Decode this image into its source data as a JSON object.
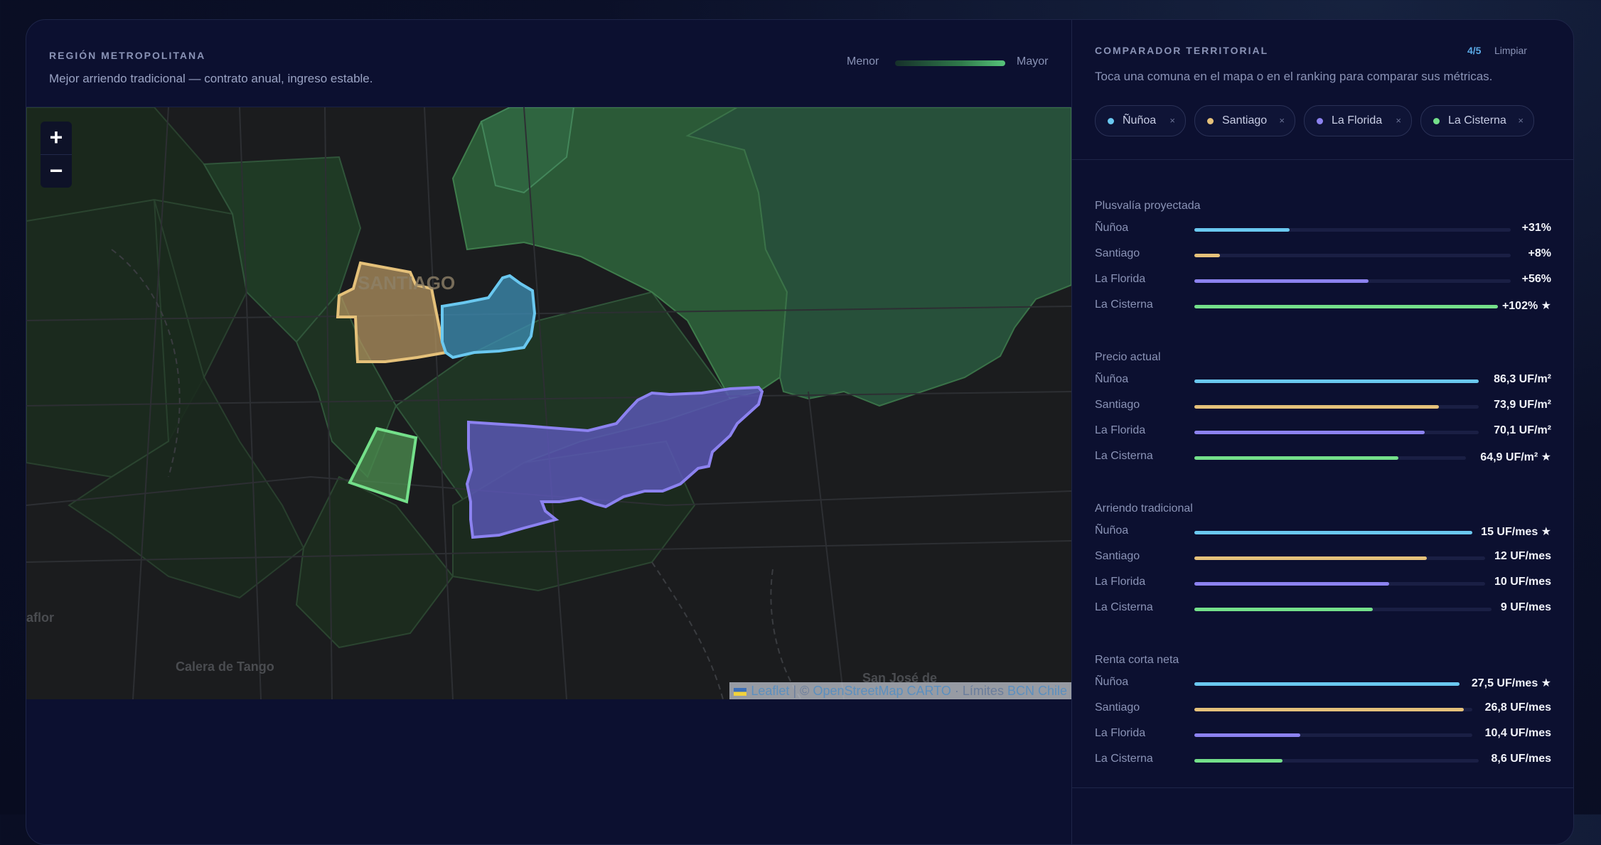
{
  "map_panel": {
    "region_title": "REGIÓN METROPOLITANA",
    "region_subtitle": "Mejor arriendo tradicional — contrato anual, ingreso estable.",
    "legend_min": "Menor",
    "legend_max": "Mayor",
    "zoom_in": "+",
    "zoom_out": "−",
    "labels": {
      "santiago": "SANTIAGO",
      "calera": "Calera de Tango",
      "aflor": "aflor",
      "sanjose": "San José de"
    },
    "attribution": {
      "leaflet": "Leaflet",
      "sep": "|",
      "copy": "©",
      "osm": "OpenStreetMap",
      "carto": "CARTO",
      "dot": "·",
      "limites": "Límites",
      "bcn": "BCN Chile"
    }
  },
  "comparator": {
    "title": "COMPARADOR TERRITORIAL",
    "count": "4/5",
    "clear_label": "Limpiar",
    "subtitle": "Toca una comuna en el mapa o en el ranking para comparar sus métricas.",
    "chips": [
      {
        "label": "Ñuñoa",
        "color": "#6ac8f0"
      },
      {
        "label": "Santiago",
        "color": "#e5c17a"
      },
      {
        "label": "La Florida",
        "color": "#8c82f0"
      },
      {
        "label": "La Cisterna",
        "color": "#74e08a"
      }
    ],
    "remove_glyph": "×"
  },
  "metrics": [
    {
      "title": "Plusvalía proyectada",
      "rows": [
        {
          "name": "Ñuñoa",
          "value": "+31%",
          "fraction": 0.3
        },
        {
          "name": "Santiago",
          "value": "+8%",
          "fraction": 0.08
        },
        {
          "name": "La Florida",
          "value": "+56%",
          "fraction": 0.55
        },
        {
          "name": "La Cisterna",
          "value": "+102% ★",
          "fraction": 1.0
        }
      ]
    },
    {
      "title": "Precio actual",
      "rows": [
        {
          "name": "Ñuñoa",
          "value": "86,3 UF/m²",
          "fraction": 1.0
        },
        {
          "name": "Santiago",
          "value": "73,9 UF/m²",
          "fraction": 0.86
        },
        {
          "name": "La Florida",
          "value": "70,1 UF/m²",
          "fraction": 0.81
        },
        {
          "name": "La Cisterna",
          "value": "64,9 UF/m² ★",
          "fraction": 0.75
        }
      ]
    },
    {
      "title": "Arriendo tradicional",
      "rows": [
        {
          "name": "Ñuñoa",
          "value": "15 UF/mes ★",
          "fraction": 1.0
        },
        {
          "name": "Santiago",
          "value": "12 UF/mes",
          "fraction": 0.8
        },
        {
          "name": "La Florida",
          "value": "10 UF/mes",
          "fraction": 0.67
        },
        {
          "name": "La Cisterna",
          "value": "9 UF/mes",
          "fraction": 0.6
        }
      ]
    },
    {
      "title": "Renta corta neta",
      "rows": [
        {
          "name": "Ñuñoa",
          "value": "27,5 UF/mes ★",
          "fraction": 1.0
        },
        {
          "name": "Santiago",
          "value": "26,8 UF/mes",
          "fraction": 0.97
        },
        {
          "name": "La Florida",
          "value": "10,4 UF/mes",
          "fraction": 0.38
        },
        {
          "name": "La Cisterna",
          "value": "8,6 UF/mes",
          "fraction": 0.31
        }
      ]
    }
  ]
}
